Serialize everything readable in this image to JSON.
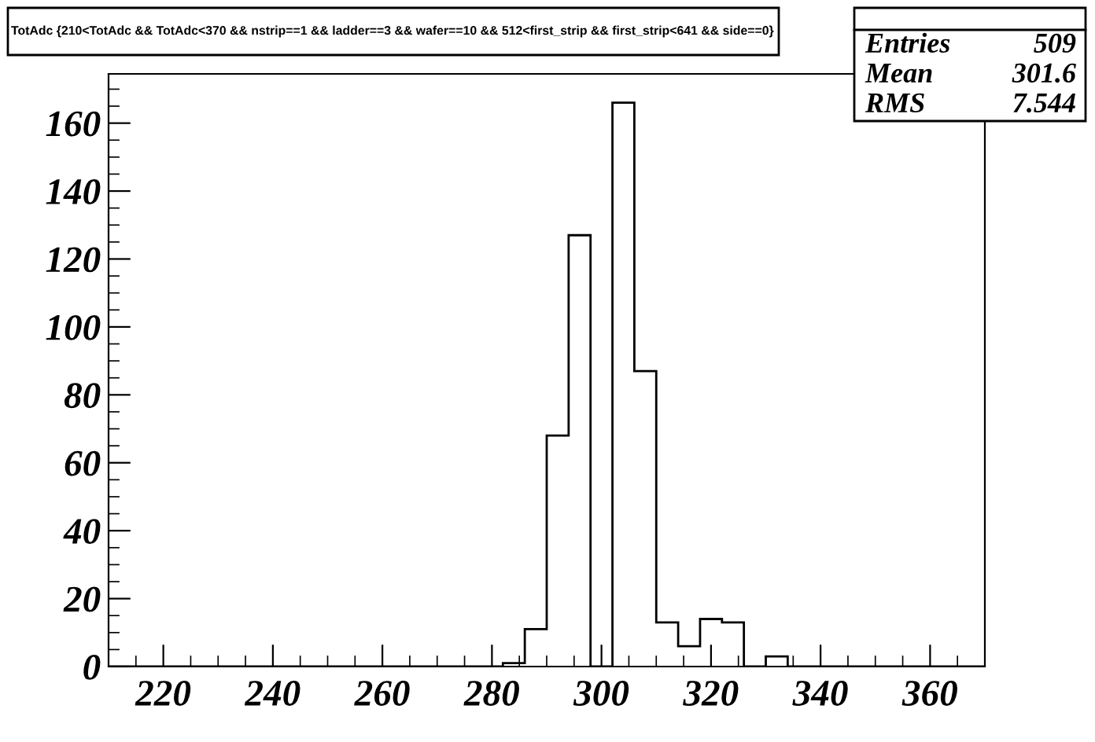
{
  "chart_data": {
    "type": "histogram",
    "title": "TotAdc {210<TotAdc && TotAdc<370 && nstrip==1 && ladder==3 && wafer==10 && 512<first_strip && first_strip<641 && side==0}",
    "bins": [
      210,
      214,
      218,
      222,
      226,
      230,
      234,
      238,
      242,
      246,
      250,
      254,
      258,
      262,
      266,
      270,
      274,
      278,
      282,
      286,
      290,
      294,
      298,
      302,
      306,
      310,
      314,
      318,
      322,
      326,
      330,
      334,
      338,
      342,
      346,
      350,
      354,
      358,
      362,
      366,
      370
    ],
    "values": [
      0,
      0,
      0,
      0,
      0,
      0,
      0,
      0,
      0,
      0,
      0,
      0,
      0,
      0,
      0,
      0,
      0,
      0,
      1,
      11,
      68,
      127,
      0,
      166,
      87,
      13,
      6,
      14,
      13,
      0,
      3,
      0,
      0,
      0,
      0,
      0,
      0,
      0,
      0,
      0
    ],
    "color": "#000000",
    "xlim": [
      210,
      370
    ],
    "ylim": [
      0,
      174.5
    ],
    "xticks": [
      {
        "value": 215,
        "label": null
      },
      220,
      {
        "value": 225,
        "label": null
      },
      {
        "value": 230,
        "label": null
      },
      {
        "value": 235,
        "label": null
      },
      240,
      {
        "value": 245,
        "label": null
      },
      {
        "value": 250,
        "label": null
      },
      {
        "value": 255,
        "label": null
      },
      260,
      {
        "value": 265,
        "label": null
      },
      {
        "value": 270,
        "label": null
      },
      {
        "value": 275,
        "label": null
      },
      280,
      {
        "value": 285,
        "label": null
      },
      {
        "value": 290,
        "label": null
      },
      {
        "value": 295,
        "label": null
      },
      300,
      {
        "value": 305,
        "label": null
      },
      {
        "value": 310,
        "label": null
      },
      {
        "value": 315,
        "label": null
      },
      320,
      {
        "value": 325,
        "label": null
      },
      {
        "value": 330,
        "label": null
      },
      {
        "value": 335,
        "label": null
      },
      340,
      {
        "value": 345,
        "label": null
      },
      {
        "value": 350,
        "label": null
      },
      {
        "value": 355,
        "label": null
      },
      360,
      {
        "value": 365,
        "label": null
      }
    ],
    "yticks": [
      0,
      {
        "value": 5,
        "label": null
      },
      {
        "value": 10,
        "label": null
      },
      {
        "value": 15,
        "label": null
      },
      20,
      {
        "value": 25,
        "label": null
      },
      {
        "value": 30,
        "label": null
      },
      {
        "value": 35,
        "label": null
      },
      40,
      {
        "value": 45,
        "label": null
      },
      {
        "value": 50,
        "label": null
      },
      {
        "value": 55,
        "label": null
      },
      60,
      {
        "value": 65,
        "label": null
      },
      {
        "value": 70,
        "label": null
      },
      {
        "value": 75,
        "label": null
      },
      80,
      {
        "value": 85,
        "label": null
      },
      {
        "value": 90,
        "label": null
      },
      {
        "value": 95,
        "label": null
      },
      100,
      {
        "value": 105,
        "label": null
      },
      {
        "value": 110,
        "label": null
      },
      {
        "value": 115,
        "label": null
      },
      120,
      {
        "value": 125,
        "label": null
      },
      {
        "value": 130,
        "label": null
      },
      {
        "value": 135,
        "label": null
      },
      140,
      {
        "value": 145,
        "label": null
      },
      {
        "value": 150,
        "label": null
      },
      {
        "value": 155,
        "label": null
      },
      160,
      {
        "value": 165,
        "label": null
      },
      {
        "value": 170,
        "label": null
      }
    ],
    "annotations": [
      "Entries",
      "509",
      "Mean",
      "301.6",
      "RMS",
      "7.544"
    ]
  }
}
